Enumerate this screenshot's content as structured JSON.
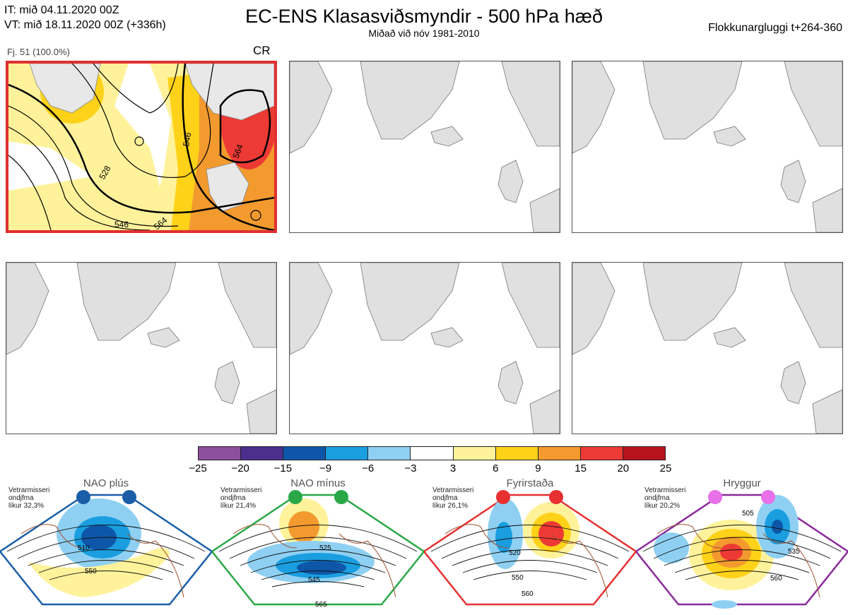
{
  "header": {
    "init_time": "IT: mið 04.11.2020 00Z",
    "valid_time": "VT: mið 18.11.2020 00Z  (+336h)",
    "title": "EC-ENS Klasasviðsmyndir - 500 hPa hæð",
    "subtitle": "Miðað við nóv 1981-2010",
    "window": "Flokkunargluggi t+264-360"
  },
  "cluster_panel": {
    "member_label": "Fj. 51 (100.0%)",
    "regime_code": "CR",
    "contour_labels": [
      "528",
      "546",
      "546",
      "564",
      "564"
    ]
  },
  "colors": {
    "highlight": "#e03030",
    "land": "#e0e0e0",
    "coast": "#777777",
    "regime_coast": "#a0522d"
  },
  "colorbar": {
    "colors": [
      "#8e4f9e",
      "#4a2f8f",
      "#0e57a8",
      "#1a9ee0",
      "#8fd0f2",
      "#ffffff",
      "#fff29a",
      "#ffd21a",
      "#f39a2e",
      "#ed3a35",
      "#b8141e"
    ],
    "ticks": [
      "−25",
      "−20",
      "−15",
      "−9",
      "−6",
      "−3",
      "3",
      "6",
      "9",
      "15",
      "20",
      "25"
    ]
  },
  "regimes": [
    {
      "name": "NAO plús",
      "season": "Vetrarmisseri",
      "type": "ondjfma",
      "likelihood": "líkur 32,3%",
      "border_color": "#1a5ea8",
      "dot_color": "#1a5ea8",
      "labels": [
        "510",
        "550"
      ]
    },
    {
      "name": "NAO mínus",
      "season": "Vetrarmisseri",
      "type": "ondjfma",
      "likelihood": "líkur 21,4%",
      "border_color": "#2aa847",
      "dot_color": "#2aa847",
      "labels": [
        "525",
        "545",
        "565"
      ]
    },
    {
      "name": "Fyrirstaða",
      "season": "Vetrarmisseri",
      "type": "ondjfma",
      "likelihood": "líkur 26,1%",
      "border_color": "#e83030",
      "dot_color": "#e83030",
      "labels": [
        "520",
        "550",
        "560"
      ]
    },
    {
      "name": "Hryggur",
      "season": "Vetrarmisseri",
      "type": "ondjfma",
      "likelihood": "líkur 20,2%",
      "border_color": "#8a2a9a",
      "dot_color": "#e870e8",
      "labels": [
        "505",
        "535",
        "560"
      ]
    }
  ]
}
